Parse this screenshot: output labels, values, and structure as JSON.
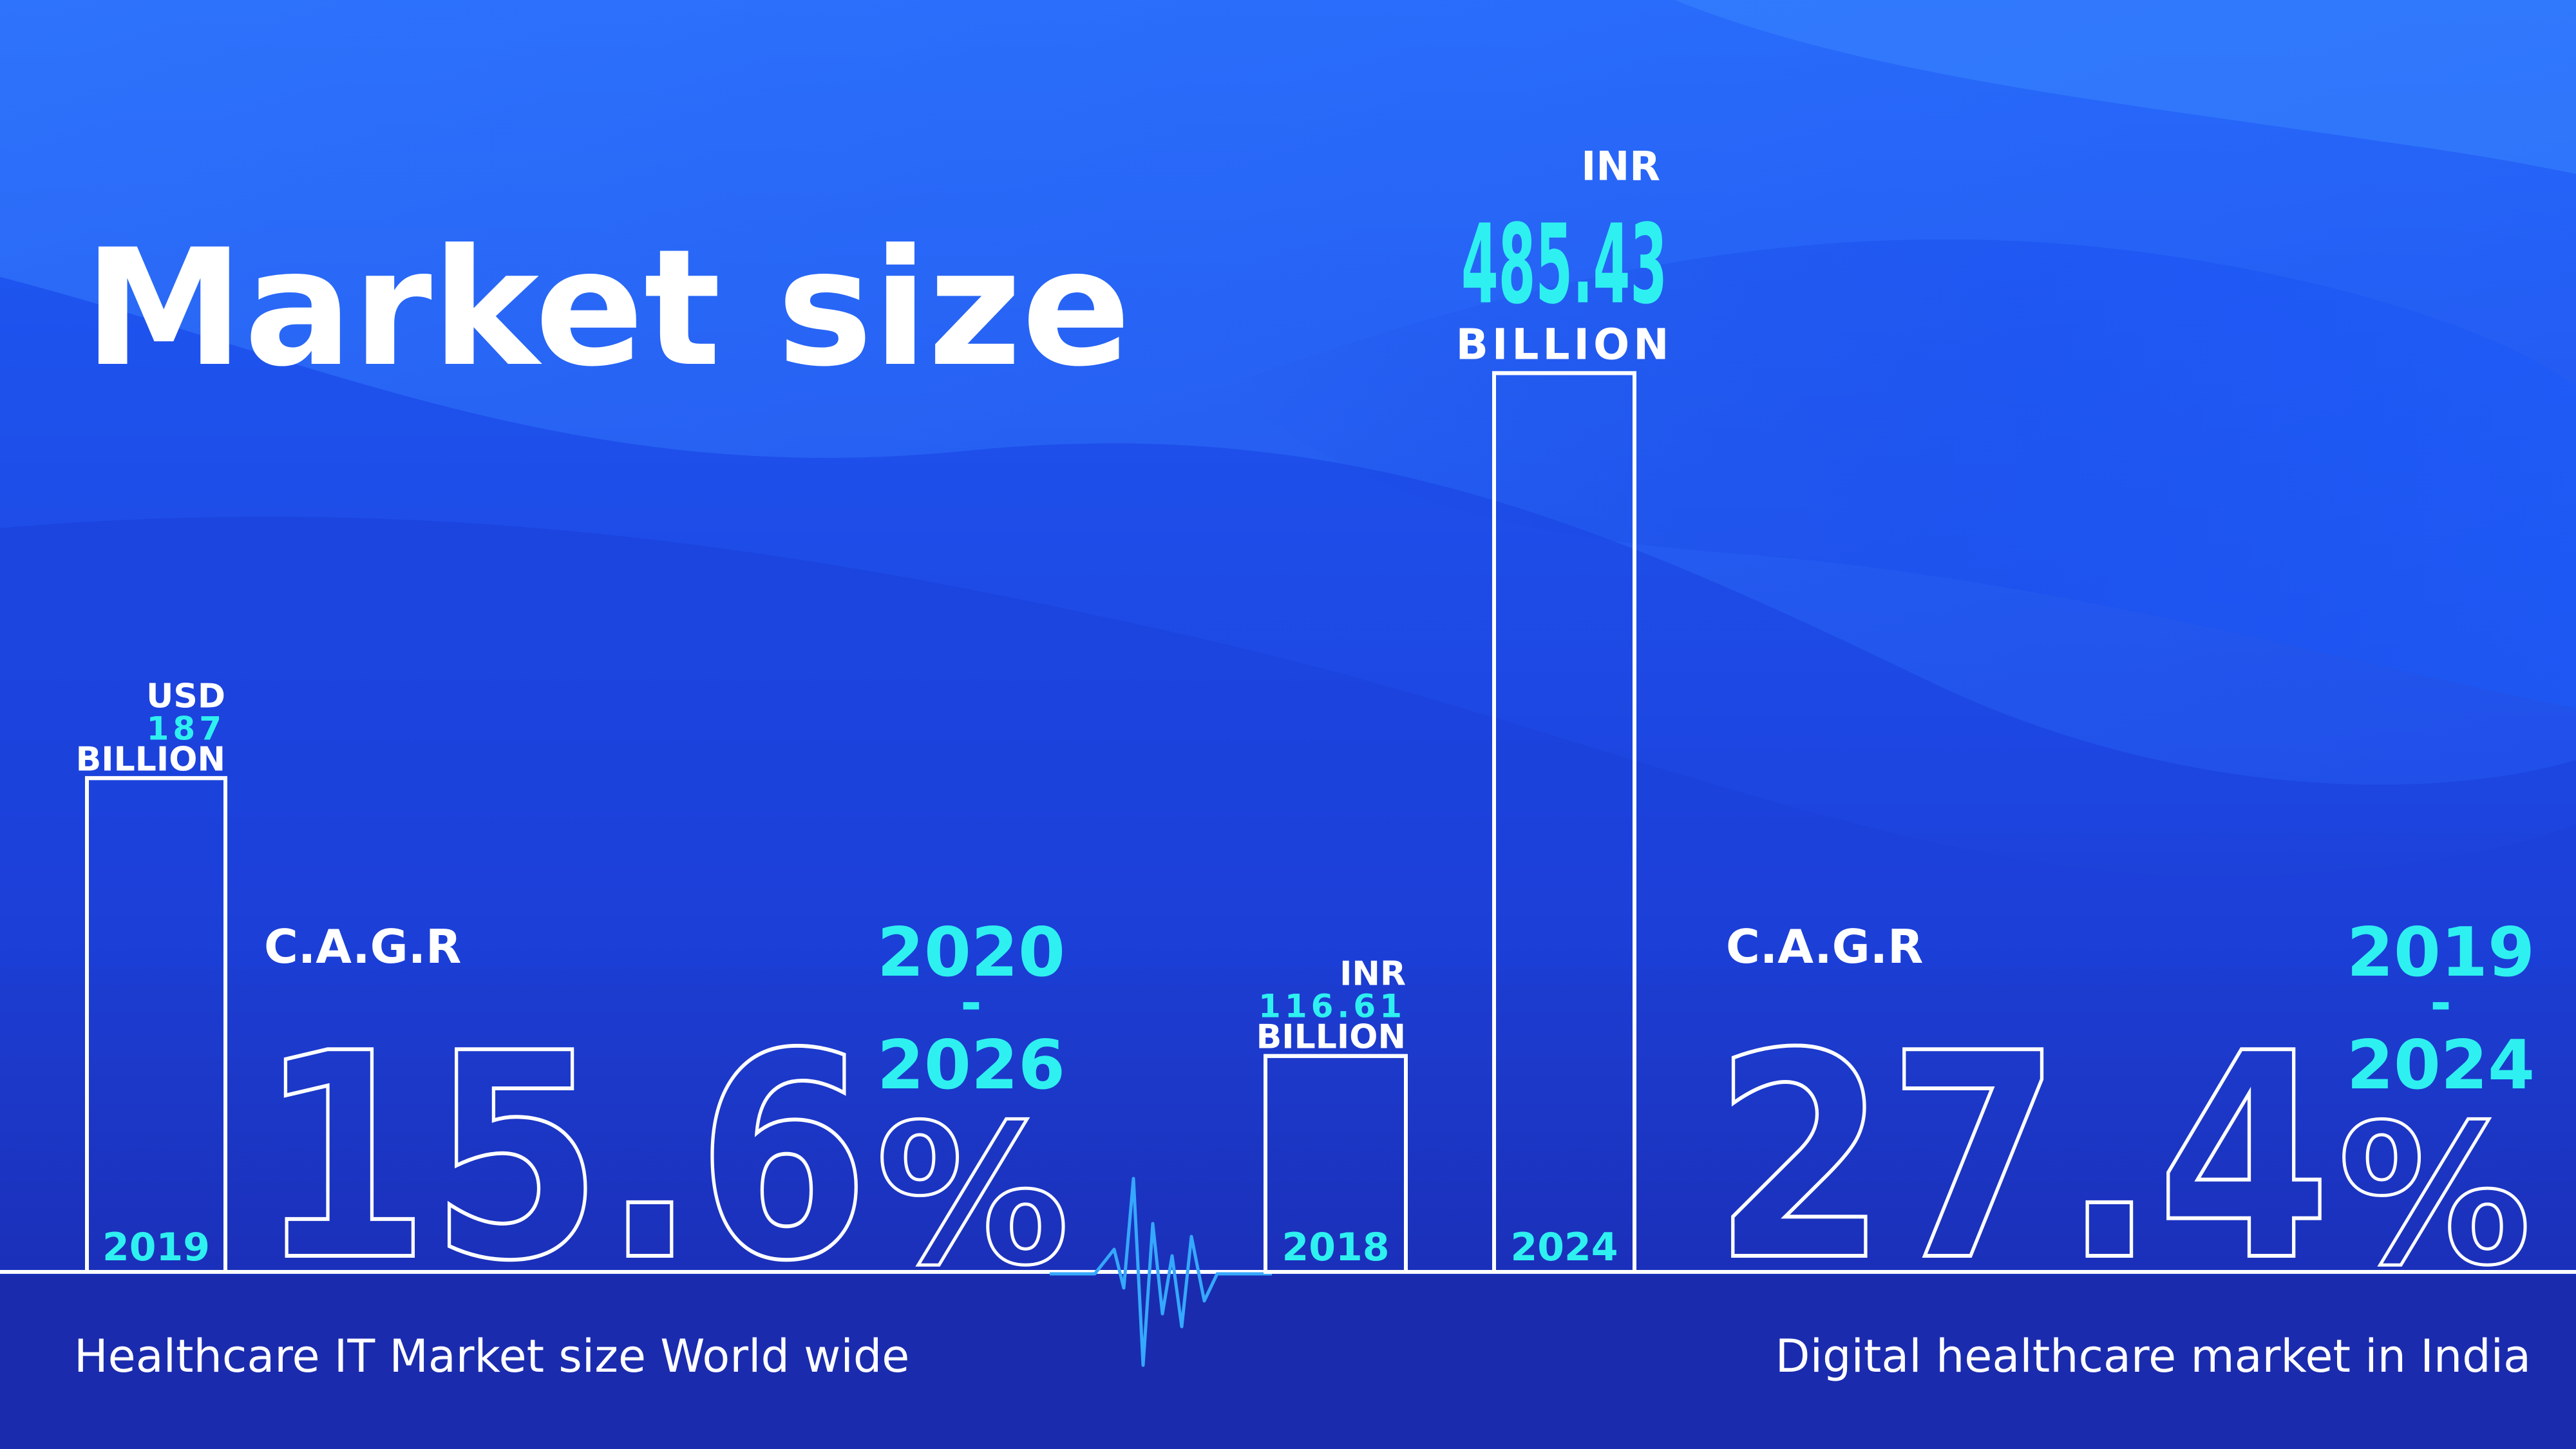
{
  "title": "Market size",
  "colors": {
    "accent": "#2ff0f0",
    "outline": "#ffffff",
    "bg_top": "#1e55f5",
    "bg_bottom": "#1a2bb0"
  },
  "chart_data": [
    {
      "type": "bar",
      "caption": "Healthcare IT Market size World wide",
      "categories": [
        "2019"
      ],
      "values": [
        187
      ],
      "value_labels": [
        {
          "currency": "USD",
          "value": "187",
          "unit": "BILLION"
        }
      ],
      "cagr": {
        "label": "C.A.G.R",
        "value": "15.6",
        "percent_sign": "%",
        "period_start": "2020",
        "period_sep": "-",
        "period_end": "2026"
      }
    },
    {
      "type": "bar",
      "caption": "Digital healthcare market in India",
      "categories": [
        "2018",
        "2024"
      ],
      "values": [
        116.61,
        485.43
      ],
      "value_labels": [
        {
          "currency": "INR",
          "value": "116.61",
          "unit": "BILLION"
        },
        {
          "currency": "INR",
          "value": "485.43",
          "unit": "BILLION"
        }
      ],
      "cagr": {
        "label": "C.A.G.R",
        "value": "27.4",
        "percent_sign": "%",
        "period_start": "2019",
        "period_sep": "-",
        "period_end": "2024"
      }
    }
  ]
}
